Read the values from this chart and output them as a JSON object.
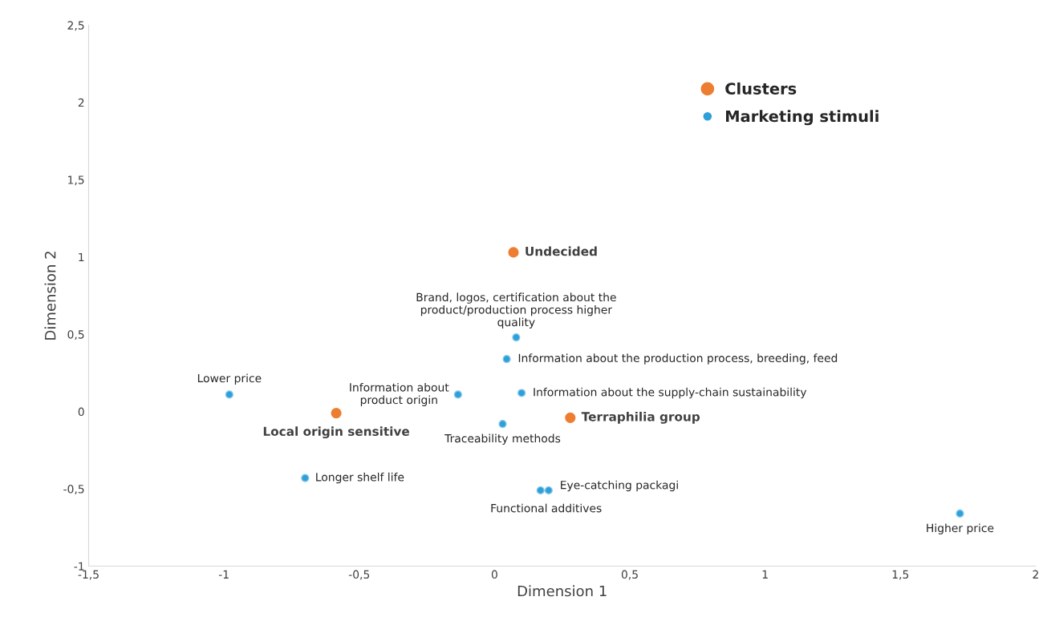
{
  "chart_data": {
    "type": "scatter",
    "xlabel": "Dimension 1",
    "ylabel": "Dimension 2",
    "xlim": [
      -1.5,
      2
    ],
    "ylim": [
      -1,
      2.5
    ],
    "xticks": [
      {
        "value": -1.5,
        "label": "-1,5"
      },
      {
        "value": -1,
        "label": "-1"
      },
      {
        "value": -0.5,
        "label": "-0,5"
      },
      {
        "value": 0,
        "label": "0"
      },
      {
        "value": 0.5,
        "label": "0,5"
      },
      {
        "value": 1,
        "label": "1"
      },
      {
        "value": 1.5,
        "label": "1,5"
      },
      {
        "value": 2,
        "label": "2"
      }
    ],
    "yticks": [
      {
        "value": -1,
        "label": "-1"
      },
      {
        "value": -0.5,
        "label": "-0,5"
      },
      {
        "value": 0,
        "label": "0"
      },
      {
        "value": 0.5,
        "label": "0,5"
      },
      {
        "value": 1,
        "label": "1"
      },
      {
        "value": 1.5,
        "label": "1,5"
      },
      {
        "value": 2,
        "label": "2"
      },
      {
        "value": 2.5,
        "label": "2,5"
      }
    ],
    "grid": false,
    "legend": "top right",
    "marker": "circle",
    "series": [
      {
        "name": "Clusters",
        "color": "#ed7d31",
        "x": [
          0.07,
          -0.585,
          0.28
        ],
        "values": [
          1.03,
          -0.01,
          -0.04
        ]
      },
      {
        "name": "Marketing stimuli",
        "color": "#2e9fd8",
        "x": [
          0.08,
          0.045,
          0.1,
          -0.135,
          -0.98,
          0.03,
          -0.7,
          0.17,
          0.2,
          1.72
        ],
        "values": [
          0.48,
          0.34,
          0.12,
          0.11,
          0.11,
          -0.08,
          -0.43,
          -0.51,
          -0.51,
          -0.66
        ]
      }
    ],
    "annotations": [
      {
        "text": "Undecided",
        "x": 0.07,
        "y": 1.03
      },
      {
        "text": "Local origin sensitive",
        "x": -0.585,
        "y": -0.01
      },
      {
        "text": "Terraphilia group",
        "x": 0.28,
        "y": -0.04
      },
      {
        "text": "Brand, logos, certification about the\nproduct/production process higher\nquality",
        "x": 0.08,
        "y": 0.48
      },
      {
        "text": "Information about the production process, breeding, feed",
        "x": 0.045,
        "y": 0.34
      },
      {
        "text": "Information about the supply-chain sustainability",
        "x": 0.1,
        "y": 0.12
      },
      {
        "text": "Information about\nproduct origin",
        "x": -0.135,
        "y": 0.11
      },
      {
        "text": "Lower price",
        "x": -0.98,
        "y": 0.11
      },
      {
        "text": "Traceability methods",
        "x": 0.03,
        "y": -0.08
      },
      {
        "text": "Longer shelf life",
        "x": -0.7,
        "y": -0.43
      },
      {
        "text": "Functional additives",
        "x": 0.17,
        "y": -0.51
      },
      {
        "text": "Eye-catching packagi",
        "x": 0.2,
        "y": -0.51
      },
      {
        "text": "Higher price",
        "x": 1.72,
        "y": -0.66
      }
    ]
  }
}
